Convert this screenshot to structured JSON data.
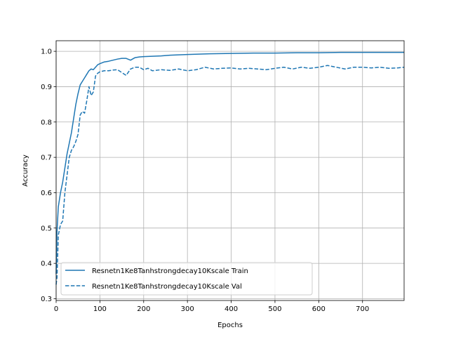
{
  "chart_data": {
    "type": "line",
    "title": "",
    "xlabel": "Epochs",
    "ylabel": "Accuracy",
    "xlim": [
      0,
      795
    ],
    "ylim": [
      0.295,
      1.03
    ],
    "xticks": [
      0,
      100,
      200,
      300,
      400,
      500,
      600,
      700
    ],
    "yticks": [
      0.3,
      0.4,
      0.5,
      0.6,
      0.7,
      0.8,
      0.9,
      1.0
    ],
    "xtick_labels": [
      "0",
      "100",
      "200",
      "300",
      "400",
      "500",
      "600",
      "700"
    ],
    "ytick_labels": [
      "0.3",
      "0.4",
      "0.5",
      "0.6",
      "0.7",
      "0.8",
      "0.9",
      "1.0"
    ],
    "grid": true,
    "legend_position": "lower-left",
    "color": "#1f77b4",
    "series": [
      {
        "name": "Resnetn1Ke8Tanhstrongdecay10Kscale Train",
        "style": "solid",
        "x": [
          0,
          2,
          5,
          10,
          15,
          20,
          25,
          30,
          35,
          40,
          45,
          50,
          55,
          60,
          65,
          70,
          75,
          80,
          85,
          90,
          95,
          100,
          110,
          120,
          130,
          140,
          150,
          160,
          170,
          180,
          190,
          200,
          220,
          240,
          260,
          280,
          300,
          350,
          400,
          450,
          500,
          550,
          600,
          650,
          700,
          750,
          795
        ],
        "y": [
          0.37,
          0.49,
          0.56,
          0.6,
          0.63,
          0.67,
          0.71,
          0.74,
          0.77,
          0.81,
          0.85,
          0.88,
          0.905,
          0.915,
          0.925,
          0.935,
          0.945,
          0.95,
          0.948,
          0.955,
          0.962,
          0.965,
          0.97,
          0.972,
          0.975,
          0.978,
          0.98,
          0.98,
          0.975,
          0.982,
          0.984,
          0.985,
          0.986,
          0.987,
          0.989,
          0.99,
          0.991,
          0.993,
          0.994,
          0.995,
          0.995,
          0.996,
          0.996,
          0.997,
          0.997,
          0.997,
          0.997
        ]
      },
      {
        "name": "Resnetn1Ke8Tanhstrongdecay10Kscale Val",
        "style": "dashed",
        "x": [
          0,
          2,
          5,
          10,
          15,
          20,
          25,
          30,
          35,
          40,
          45,
          50,
          55,
          60,
          65,
          70,
          75,
          80,
          85,
          90,
          95,
          100,
          110,
          120,
          130,
          140,
          150,
          160,
          170,
          180,
          190,
          200,
          210,
          220,
          240,
          260,
          280,
          300,
          320,
          340,
          360,
          380,
          400,
          420,
          440,
          460,
          480,
          500,
          520,
          540,
          560,
          580,
          600,
          620,
          640,
          660,
          680,
          700,
          720,
          740,
          760,
          780,
          795
        ],
        "y": [
          0.34,
          0.36,
          0.48,
          0.51,
          0.52,
          0.6,
          0.65,
          0.7,
          0.72,
          0.73,
          0.745,
          0.765,
          0.82,
          0.83,
          0.825,
          0.86,
          0.9,
          0.875,
          0.885,
          0.93,
          0.938,
          0.942,
          0.945,
          0.945,
          0.947,
          0.948,
          0.94,
          0.932,
          0.95,
          0.955,
          0.955,
          0.948,
          0.952,
          0.945,
          0.948,
          0.946,
          0.95,
          0.945,
          0.948,
          0.955,
          0.95,
          0.952,
          0.953,
          0.95,
          0.952,
          0.95,
          0.948,
          0.952,
          0.955,
          0.95,
          0.955,
          0.952,
          0.955,
          0.96,
          0.955,
          0.95,
          0.955,
          0.955,
          0.953,
          0.955,
          0.952,
          0.953,
          0.955
        ]
      }
    ]
  }
}
